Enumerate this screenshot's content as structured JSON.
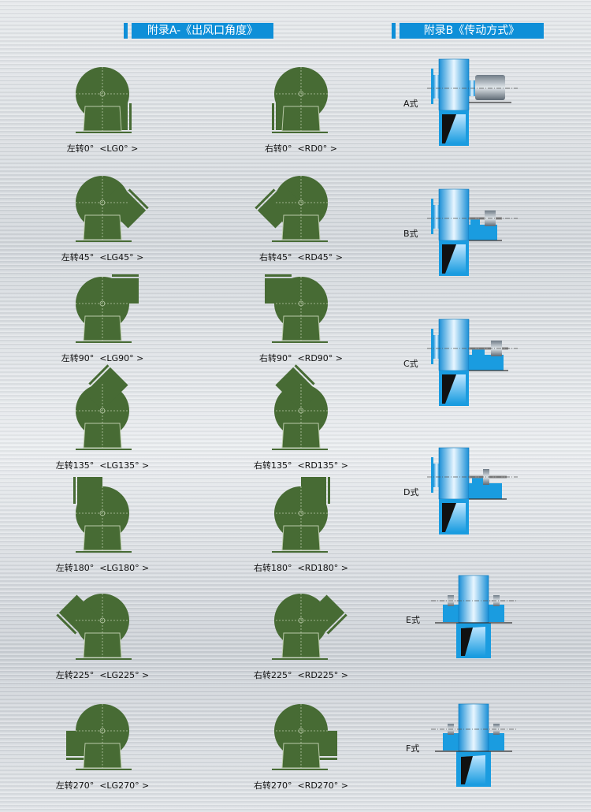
{
  "colors": {
    "header_blue": "#0e8fd8",
    "fan_green": "#476b34",
    "drive_blue": "#1a9ce0"
  },
  "appendix_a": {
    "title": "附录A-《出风口角度》",
    "rows": [
      {
        "left": {
          "label": "左转0°  <LG0° >",
          "angle": 0
        },
        "right": {
          "label": "右转0°  <RD0° >",
          "angle": 0
        }
      },
      {
        "left": {
          "label": "左转45°  <LG45° >",
          "angle": 45
        },
        "right": {
          "label": "右转45°  <RD45° >",
          "angle": 45
        }
      },
      {
        "left": {
          "label": "左转90°  <LG90° >",
          "angle": 90
        },
        "right": {
          "label": "右转90°  <RD90° >",
          "angle": 90
        }
      },
      {
        "left": {
          "label": "左转135°  <LG135° >",
          "angle": 135
        },
        "right": {
          "label": "右转135°  <RD135° >",
          "angle": 135
        }
      },
      {
        "left": {
          "label": "左转180°  <LG180° >",
          "angle": 180
        },
        "right": {
          "label": "右转180°  <RD180° >",
          "angle": 180
        }
      },
      {
        "left": {
          "label": "左转225°  <LG225° >",
          "angle": 225
        },
        "right": {
          "label": "右转225°  <RD225° >",
          "angle": 225
        }
      },
      {
        "left": {
          "label": "左转270°  <LG270° >",
          "angle": 270
        },
        "right": {
          "label": "右转270°  <RD270° >",
          "angle": 270
        }
      }
    ]
  },
  "appendix_b": {
    "title": "附录B《传动方式》",
    "types": [
      {
        "label": "A式"
      },
      {
        "label": "B式"
      },
      {
        "label": "C式"
      },
      {
        "label": "D式"
      },
      {
        "label": "E式"
      },
      {
        "label": "F式"
      }
    ]
  }
}
